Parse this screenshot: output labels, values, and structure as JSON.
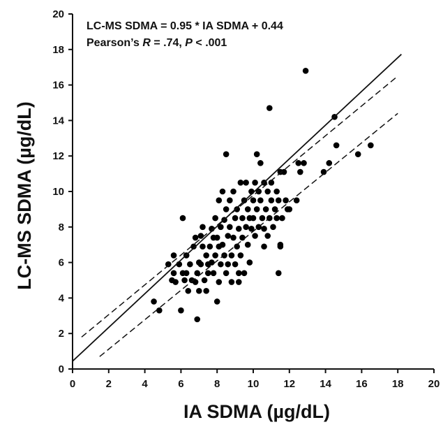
{
  "chart_data": {
    "type": "scatter",
    "title": "",
    "xlabel": "IA SDMA (µg/dL)",
    "ylabel": "LC-MS SDMA (µg/dL)",
    "xlim": [
      0,
      20
    ],
    "ylim": [
      0,
      20
    ],
    "x_ticks": [
      "0",
      "2",
      "4",
      "6",
      "8",
      "10",
      "12",
      "14",
      "16",
      "18",
      "20"
    ],
    "y_ticks": [
      "0",
      "2",
      "4",
      "6",
      "8",
      "10",
      "12",
      "14",
      "16",
      "18",
      "20"
    ],
    "grid": false,
    "annotations": {
      "equation": "LC-MS SDMA = 0.95 * IA SDMA + 0.44",
      "stats_prefix": "Pearson’s ",
      "stats_r_symbol": "R",
      "stats_r_value": " = .74, ",
      "stats_p_symbol": "P",
      "stats_p_value": " < .001"
    },
    "regression": {
      "slope": 0.95,
      "intercept": 0.44,
      "x_range": [
        0,
        18.2
      ]
    },
    "confidence_band": {
      "upper": [
        [
          0.5,
          1.8
        ],
        [
          18.0,
          16.5
        ]
      ],
      "lower": [
        [
          1.5,
          0.7
        ],
        [
          18.0,
          14.4
        ]
      ]
    },
    "points": [
      [
        4.5,
        3.8
      ],
      [
        4.8,
        3.3
      ],
      [
        5.3,
        5.9
      ],
      [
        5.5,
        5.0
      ],
      [
        5.6,
        5.4
      ],
      [
        5.6,
        6.4
      ],
      [
        5.7,
        4.9
      ],
      [
        5.9,
        5.9
      ],
      [
        6.0,
        3.3
      ],
      [
        6.1,
        8.5
      ],
      [
        6.1,
        5.4
      ],
      [
        6.2,
        5.0
      ],
      [
        6.3,
        6.4
      ],
      [
        6.3,
        5.4
      ],
      [
        6.4,
        4.4
      ],
      [
        6.5,
        5.9
      ],
      [
        6.6,
        5.0
      ],
      [
        6.7,
        6.9
      ],
      [
        6.8,
        4.9
      ],
      [
        6.8,
        7.4
      ],
      [
        6.9,
        2.8
      ],
      [
        6.9,
        5.4
      ],
      [
        7.0,
        4.4
      ],
      [
        7.0,
        6.0
      ],
      [
        7.1,
        7.5
      ],
      [
        7.1,
        5.9
      ],
      [
        7.2,
        6.9
      ],
      [
        7.2,
        8.0
      ],
      [
        7.3,
        5.0
      ],
      [
        7.4,
        6.4
      ],
      [
        7.4,
        4.4
      ],
      [
        7.5,
        5.4
      ],
      [
        7.6,
        6.9
      ],
      [
        7.7,
        7.9
      ],
      [
        7.7,
        6.0
      ],
      [
        7.8,
        5.4
      ],
      [
        7.8,
        7.4
      ],
      [
        7.9,
        6.4
      ],
      [
        7.9,
        8.5
      ],
      [
        8.0,
        3.8
      ],
      [
        8.0,
        7.4
      ],
      [
        8.1,
        6.9
      ],
      [
        8.1,
        9.5
      ],
      [
        8.2,
        5.9
      ],
      [
        8.2,
        8.0
      ],
      [
        8.3,
        7.0
      ],
      [
        8.3,
        10.0
      ],
      [
        8.4,
        6.4
      ],
      [
        8.4,
        8.4
      ],
      [
        8.5,
        12.1
      ],
      [
        8.5,
        5.4
      ],
      [
        8.5,
        9.0
      ],
      [
        8.6,
        7.5
      ],
      [
        8.6,
        5.9
      ],
      [
        8.7,
        9.5
      ],
      [
        8.7,
        8.0
      ],
      [
        8.8,
        6.4
      ],
      [
        8.8,
        4.9
      ],
      [
        8.9,
        7.4
      ],
      [
        8.9,
        10.0
      ],
      [
        9.0,
        8.5
      ],
      [
        9.0,
        5.9
      ],
      [
        9.1,
        6.9
      ],
      [
        9.1,
        9.0
      ],
      [
        9.2,
        7.9
      ],
      [
        9.2,
        4.9
      ],
      [
        9.3,
        10.5
      ],
      [
        9.3,
        6.4
      ],
      [
        9.4,
        8.5
      ],
      [
        9.4,
        7.4
      ],
      [
        9.5,
        9.5
      ],
      [
        9.5,
        5.4
      ],
      [
        9.6,
        8.0
      ],
      [
        9.6,
        10.5
      ],
      [
        9.7,
        7.0
      ],
      [
        9.7,
        9.0
      ],
      [
        9.8,
        8.5
      ],
      [
        9.8,
        6.0
      ],
      [
        9.9,
        10.0
      ],
      [
        9.9,
        7.9
      ],
      [
        10.0,
        9.5
      ],
      [
        10.0,
        8.5
      ],
      [
        10.1,
        10.5
      ],
      [
        10.1,
        7.5
      ],
      [
        10.2,
        9.0
      ],
      [
        10.2,
        12.1
      ],
      [
        10.3,
        8.0
      ],
      [
        10.3,
        10.0
      ],
      [
        10.4,
        11.6
      ],
      [
        10.4,
        9.5
      ],
      [
        10.5,
        8.5
      ],
      [
        10.6,
        10.5
      ],
      [
        10.6,
        7.9
      ],
      [
        10.7,
        9.0
      ],
      [
        10.8,
        10.0
      ],
      [
        10.8,
        7.5
      ],
      [
        10.9,
        14.7
      ],
      [
        10.9,
        8.5
      ],
      [
        11.0,
        9.5
      ],
      [
        11.0,
        10.5
      ],
      [
        11.1,
        8.0
      ],
      [
        11.2,
        9.0
      ],
      [
        11.3,
        10.0
      ],
      [
        11.3,
        8.5
      ],
      [
        11.4,
        5.4
      ],
      [
        11.4,
        9.5
      ],
      [
        11.5,
        7.0
      ],
      [
        11.5,
        11.1
      ],
      [
        11.6,
        8.5
      ],
      [
        11.7,
        11.1
      ],
      [
        11.8,
        9.5
      ],
      [
        11.9,
        9.0
      ],
      [
        12.0,
        9.0
      ],
      [
        12.4,
        9.5
      ],
      [
        12.5,
        11.6
      ],
      [
        12.6,
        11.1
      ],
      [
        12.8,
        11.6
      ],
      [
        12.9,
        16.8
      ],
      [
        13.9,
        11.1
      ],
      [
        14.2,
        11.6
      ],
      [
        14.5,
        14.2
      ],
      [
        14.6,
        12.6
      ],
      [
        15.8,
        12.1
      ],
      [
        16.5,
        12.6
      ],
      [
        11.5,
        6.9
      ],
      [
        10.6,
        6.9
      ],
      [
        9.2,
        5.4
      ],
      [
        8.1,
        4.9
      ],
      [
        7.5,
        5.9
      ]
    ]
  }
}
